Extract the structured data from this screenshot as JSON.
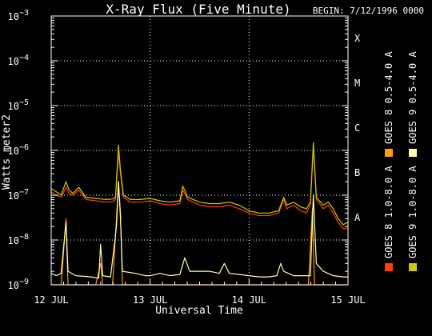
{
  "header": {
    "title": "X-Ray Flux (Five Minute)",
    "begin": "BEGIN: 7/12/1996 0000"
  },
  "chart_data": {
    "type": "line",
    "title": "X-Ray Flux (Five Minute)",
    "xlabel": "Universal Time",
    "ylabel": "Watts meter2",
    "yscale": "log",
    "ylim": [
      1e-09,
      0.001
    ],
    "xlim": [
      0,
      3
    ],
    "x_unit": "days since 12 JUL 1996 0000 UT",
    "grid": "dotted",
    "legend_position": "right",
    "x_ticks": [
      {
        "x": 0,
        "label": "12 JUL"
      },
      {
        "x": 1,
        "label": "13 JUL"
      },
      {
        "x": 2,
        "label": "14 JUL"
      },
      {
        "x": 3,
        "label": "15 JUL"
      }
    ],
    "y_ticks": [
      {
        "exp": -9,
        "base": "10",
        "sup": "−9"
      },
      {
        "exp": -8,
        "base": "10",
        "sup": "−8"
      },
      {
        "exp": -7,
        "base": "10",
        "sup": "−7"
      },
      {
        "exp": -6,
        "base": "10",
        "sup": "−6"
      },
      {
        "exp": -5,
        "base": "10",
        "sup": "−5"
      },
      {
        "exp": -4,
        "base": "10",
        "sup": "−4"
      },
      {
        "exp": -3,
        "base": "10",
        "sup": "−3"
      }
    ],
    "flare_classes": [
      {
        "label": "A",
        "exp": -7.5
      },
      {
        "label": "B",
        "exp": -6.5
      },
      {
        "label": "C",
        "exp": -5.5
      },
      {
        "label": "M",
        "exp": -4.5
      },
      {
        "label": "X",
        "exp": -3.5
      }
    ],
    "series": [
      {
        "name": "GOES 8 1.0-8.0 A",
        "color": "#ff4000",
        "points": [
          [
            0.0,
            1.2e-07
          ],
          [
            0.05,
            1e-07
          ],
          [
            0.1,
            9e-08
          ],
          [
            0.15,
            1.5e-07
          ],
          [
            0.18,
            1.1e-07
          ],
          [
            0.22,
            1e-07
          ],
          [
            0.28,
            1.3e-07
          ],
          [
            0.35,
            8e-08
          ],
          [
            0.45,
            7.5e-08
          ],
          [
            0.55,
            7e-08
          ],
          [
            0.62,
            7.2e-08
          ],
          [
            0.65,
            8e-08
          ],
          [
            0.68,
            9e-07
          ],
          [
            0.7,
            3e-07
          ],
          [
            0.73,
            9e-08
          ],
          [
            0.8,
            7e-08
          ],
          [
            0.9,
            7e-08
          ],
          [
            1.0,
            7.5e-08
          ],
          [
            1.1,
            6.5e-08
          ],
          [
            1.2,
            6e-08
          ],
          [
            1.3,
            6.5e-08
          ],
          [
            1.33,
            1.3e-07
          ],
          [
            1.38,
            8e-08
          ],
          [
            1.5,
            6e-08
          ],
          [
            1.6,
            5.5e-08
          ],
          [
            1.7,
            5.5e-08
          ],
          [
            1.8,
            6e-08
          ],
          [
            1.9,
            5e-08
          ],
          [
            2.0,
            4e-08
          ],
          [
            2.1,
            3.5e-08
          ],
          [
            2.2,
            3.5e-08
          ],
          [
            2.3,
            4e-08
          ],
          [
            2.35,
            8e-08
          ],
          [
            2.38,
            5e-08
          ],
          [
            2.45,
            6e-08
          ],
          [
            2.52,
            4.5e-08
          ],
          [
            2.58,
            4e-08
          ],
          [
            2.62,
            6e-08
          ],
          [
            2.65,
            1.2e-06
          ],
          [
            2.68,
            8e-08
          ],
          [
            2.75,
            5e-08
          ],
          [
            2.8,
            6e-08
          ],
          [
            2.85,
            4e-08
          ],
          [
            2.9,
            2.5e-08
          ],
          [
            2.95,
            1.8e-08
          ],
          [
            3.0,
            1.8e-08
          ]
        ]
      },
      {
        "name": "GOES 8 0.5-4.0 A",
        "color": "#ff9a00",
        "points": [
          [
            0.0,
            1e-09
          ],
          [
            0.05,
            1e-09
          ],
          [
            0.1,
            1e-09
          ],
          [
            0.15,
            3e-08
          ],
          [
            0.17,
            1e-09
          ],
          [
            0.3,
            1e-09
          ],
          [
            0.45,
            1e-09
          ],
          [
            0.5,
            3e-09
          ],
          [
            0.52,
            1e-09
          ],
          [
            0.62,
            1e-09
          ],
          [
            0.66,
            3e-08
          ],
          [
            0.68,
            2e-07
          ],
          [
            0.7,
            4e-08
          ],
          [
            0.72,
            1e-09
          ],
          [
            1.0,
            1e-09
          ],
          [
            2.0,
            1e-09
          ],
          [
            2.6,
            1e-09
          ],
          [
            2.64,
            5e-08
          ],
          [
            2.66,
            1e-09
          ],
          [
            2.8,
            1e-09
          ],
          [
            3.0,
            1e-09
          ]
        ]
      },
      {
        "name": "GOES 9 1.0-8.0 A",
        "color": "#cccc00",
        "points": [
          [
            0.0,
            1.4e-07
          ],
          [
            0.05,
            1.2e-07
          ],
          [
            0.1,
            1e-07
          ],
          [
            0.15,
            2e-07
          ],
          [
            0.18,
            1.3e-07
          ],
          [
            0.22,
            1.1e-07
          ],
          [
            0.28,
            1.5e-07
          ],
          [
            0.35,
            9e-08
          ],
          [
            0.45,
            8.5e-08
          ],
          [
            0.55,
            8e-08
          ],
          [
            0.62,
            8.2e-08
          ],
          [
            0.65,
            9e-08
          ],
          [
            0.68,
            1.3e-06
          ],
          [
            0.7,
            3.5e-07
          ],
          [
            0.73,
            1e-07
          ],
          [
            0.8,
            8e-08
          ],
          [
            0.9,
            8e-08
          ],
          [
            1.0,
            8.5e-08
          ],
          [
            1.1,
            7.5e-08
          ],
          [
            1.2,
            7e-08
          ],
          [
            1.3,
            7.5e-08
          ],
          [
            1.33,
            1.6e-07
          ],
          [
            1.38,
            9e-08
          ],
          [
            1.5,
            7e-08
          ],
          [
            1.6,
            6.5e-08
          ],
          [
            1.7,
            6.5e-08
          ],
          [
            1.8,
            7e-08
          ],
          [
            1.9,
            6e-08
          ],
          [
            2.0,
            4.5e-08
          ],
          [
            2.1,
            4e-08
          ],
          [
            2.2,
            4e-08
          ],
          [
            2.3,
            4.5e-08
          ],
          [
            2.35,
            9e-08
          ],
          [
            2.38,
            6e-08
          ],
          [
            2.45,
            7e-08
          ],
          [
            2.52,
            5.5e-08
          ],
          [
            2.58,
            5e-08
          ],
          [
            2.62,
            7e-08
          ],
          [
            2.65,
            1.5e-06
          ],
          [
            2.68,
            9e-08
          ],
          [
            2.75,
            6e-08
          ],
          [
            2.8,
            7e-08
          ],
          [
            2.85,
            5e-08
          ],
          [
            2.9,
            3e-08
          ],
          [
            2.95,
            2.2e-08
          ],
          [
            3.0,
            2.5e-08
          ]
        ]
      },
      {
        "name": "GOES 9 0.5-4.0 A",
        "color": "#ffffaa",
        "points": [
          [
            0.0,
            1.8e-09
          ],
          [
            0.05,
            1.6e-09
          ],
          [
            0.1,
            1.8e-09
          ],
          [
            0.15,
            2.5e-08
          ],
          [
            0.17,
            2e-09
          ],
          [
            0.25,
            1.6e-09
          ],
          [
            0.4,
            1.5e-09
          ],
          [
            0.48,
            1.4e-09
          ],
          [
            0.5,
            8e-09
          ],
          [
            0.52,
            1.6e-09
          ],
          [
            0.6,
            1.5e-09
          ],
          [
            0.66,
            2e-08
          ],
          [
            0.68,
            2e-07
          ],
          [
            0.7,
            3e-08
          ],
          [
            0.72,
            2e-09
          ],
          [
            0.85,
            1.8e-09
          ],
          [
            0.95,
            1.6e-09
          ],
          [
            1.0,
            1.6e-09
          ],
          [
            1.1,
            1.8e-09
          ],
          [
            1.2,
            1.6e-09
          ],
          [
            1.3,
            1.7e-09
          ],
          [
            1.35,
            4e-09
          ],
          [
            1.4,
            2e-09
          ],
          [
            1.5,
            2e-09
          ],
          [
            1.6,
            2e-09
          ],
          [
            1.7,
            1.8e-09
          ],
          [
            1.75,
            3e-09
          ],
          [
            1.8,
            1.8e-09
          ],
          [
            1.9,
            1.7e-09
          ],
          [
            2.0,
            1.6e-09
          ],
          [
            2.1,
            1.5e-09
          ],
          [
            2.2,
            1.5e-09
          ],
          [
            2.28,
            1.6e-09
          ],
          [
            2.32,
            3e-09
          ],
          [
            2.35,
            2e-09
          ],
          [
            2.45,
            1.6e-09
          ],
          [
            2.55,
            1.6e-09
          ],
          [
            2.62,
            1.6e-09
          ],
          [
            2.65,
            1e-07
          ],
          [
            2.68,
            3e-09
          ],
          [
            2.75,
            2e-09
          ],
          [
            2.85,
            1.6e-09
          ],
          [
            2.95,
            1.5e-09
          ],
          [
            3.0,
            1.5e-09
          ]
        ]
      }
    ]
  }
}
